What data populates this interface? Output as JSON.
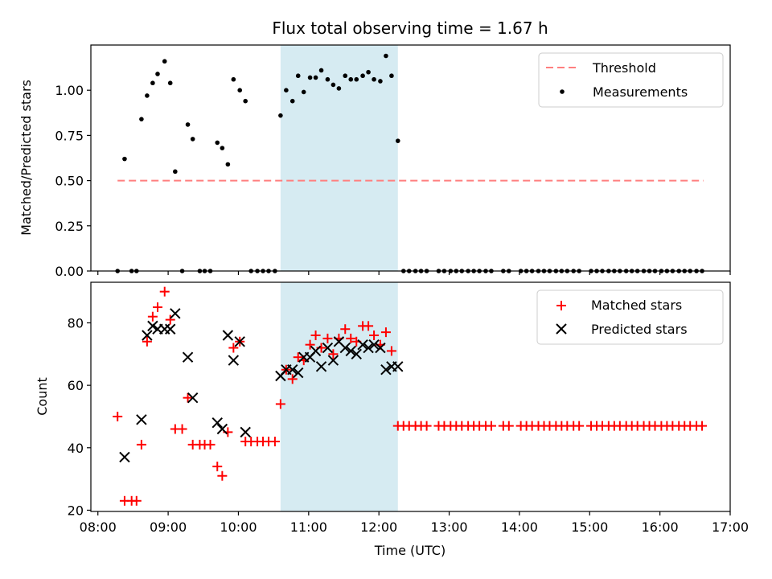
{
  "chart_data": {
    "title": "Flux total observing time = 1.67 h",
    "xlabel": "Time (UTC)",
    "x_ticks": [
      "08:00",
      "09:00",
      "10:00",
      "11:00",
      "12:00",
      "13:00",
      "14:00",
      "15:00",
      "16:00",
      "17:00"
    ],
    "xlim_hours": [
      7.9,
      17.0
    ],
    "shaded_interval_hours": [
      10.6,
      12.27
    ],
    "colors": {
      "shade": "#add8e6",
      "threshold": "#ff7f7f",
      "measurement": "#000000",
      "matched": "#ff0000",
      "predicted": "#000000"
    },
    "top": {
      "type": "scatter",
      "ylabel": "Matched/Predicted stars",
      "ylim": [
        0.0,
        1.25
      ],
      "y_ticks": [
        0.0,
        0.25,
        0.5,
        0.75,
        1.0
      ],
      "y_tick_labels": [
        "0.00",
        "0.25",
        "0.50",
        "0.75",
        "1.00"
      ],
      "legend": [
        "Threshold",
        "Measurements"
      ],
      "threshold": {
        "value": 0.5,
        "x_range": [
          8.28,
          16.62
        ]
      },
      "measurements": {
        "x": [
          8.28,
          8.38,
          8.48,
          8.55,
          8.62,
          8.7,
          8.78,
          8.85,
          8.95,
          9.03,
          9.1,
          9.2,
          9.28,
          9.35,
          9.45,
          9.52,
          9.6,
          9.7,
          9.77,
          9.85,
          9.93,
          10.02,
          10.1,
          10.18,
          10.27,
          10.35,
          10.43,
          10.52,
          10.6,
          10.68,
          10.77,
          10.85,
          10.93,
          11.02,
          11.1,
          11.18,
          11.27,
          11.35,
          11.43,
          11.52,
          11.6,
          11.68,
          11.77,
          11.85,
          11.93,
          12.02,
          12.1,
          12.18,
          12.27,
          12.35,
          12.43,
          12.52,
          12.6,
          12.68,
          12.85,
          12.93,
          13.02,
          13.1,
          13.18,
          13.27,
          13.35,
          13.43,
          13.52,
          13.6,
          13.77,
          13.85,
          14.02,
          14.1,
          14.18,
          14.27,
          14.35,
          14.43,
          14.52,
          14.6,
          14.68,
          14.77,
          14.85,
          15.02,
          15.1,
          15.18,
          15.27,
          15.35,
          15.43,
          15.52,
          15.6,
          15.68,
          15.77,
          15.85,
          15.93,
          16.02,
          16.1,
          16.18,
          16.27,
          16.35,
          16.43,
          16.52,
          16.6
        ],
        "y": [
          0.0,
          0.62,
          0.0,
          0.0,
          0.84,
          0.97,
          1.04,
          1.09,
          1.16,
          1.04,
          0.55,
          0.0,
          0.81,
          0.73,
          0.0,
          0.0,
          0.0,
          0.71,
          0.68,
          0.59,
          1.06,
          1.0,
          0.94,
          0.0,
          0.0,
          0.0,
          0.0,
          0.0,
          0.86,
          1.0,
          0.94,
          1.08,
          0.99,
          1.07,
          1.07,
          1.11,
          1.06,
          1.03,
          1.01,
          1.08,
          1.06,
          1.06,
          1.08,
          1.1,
          1.06,
          1.05,
          1.19,
          1.08,
          0.72,
          0.0,
          0.0,
          0.0,
          0.0,
          0.0,
          0.0,
          0.0,
          0.0,
          0.0,
          0.0,
          0.0,
          0.0,
          0.0,
          0.0,
          0.0,
          0.0,
          0.0,
          0.0,
          0.0,
          0.0,
          0.0,
          0.0,
          0.0,
          0.0,
          0.0,
          0.0,
          0.0,
          0.0,
          0.0,
          0.0,
          0.0,
          0.0,
          0.0,
          0.0,
          0.0,
          0.0,
          0.0,
          0.0,
          0.0,
          0.0,
          0.0,
          0.0,
          0.0,
          0.0,
          0.0,
          0.0,
          0.0,
          0.0
        ]
      }
    },
    "bottom": {
      "type": "scatter",
      "ylabel": "Count",
      "ylim": [
        19.6,
        93
      ],
      "y_ticks": [
        20,
        40,
        60,
        80
      ],
      "y_tick_labels": [
        "20",
        "40",
        "60",
        "80"
      ],
      "legend": [
        "Matched stars",
        "Predicted stars"
      ],
      "matched": {
        "x": [
          8.28,
          8.38,
          8.48,
          8.55,
          8.62,
          8.7,
          8.78,
          8.85,
          8.95,
          9.03,
          9.1,
          9.2,
          9.28,
          9.35,
          9.45,
          9.52,
          9.6,
          9.7,
          9.77,
          9.85,
          9.93,
          10.02,
          10.1,
          10.18,
          10.27,
          10.35,
          10.43,
          10.52,
          10.6,
          10.68,
          10.77,
          10.85,
          10.93,
          11.02,
          11.1,
          11.18,
          11.27,
          11.35,
          11.43,
          11.52,
          11.6,
          11.68,
          11.77,
          11.85,
          11.93,
          12.02,
          12.1,
          12.18,
          12.27,
          12.35,
          12.43,
          12.52,
          12.6,
          12.68,
          12.85,
          12.93,
          13.02,
          13.1,
          13.18,
          13.27,
          13.35,
          13.43,
          13.52,
          13.6,
          13.77,
          13.85,
          14.02,
          14.1,
          14.18,
          14.27,
          14.35,
          14.43,
          14.52,
          14.6,
          14.68,
          14.77,
          14.85,
          15.02,
          15.1,
          15.18,
          15.27,
          15.35,
          15.43,
          15.52,
          15.6,
          15.68,
          15.77,
          15.85,
          15.93,
          16.02,
          16.1,
          16.18,
          16.27,
          16.35,
          16.43,
          16.52,
          16.6
        ],
        "y": [
          50,
          23,
          23,
          23,
          41,
          74,
          82,
          85,
          90,
          81,
          46,
          46,
          56,
          41,
          41,
          41,
          41,
          34,
          31,
          45,
          72,
          74,
          42,
          42,
          42,
          42,
          42,
          42,
          54,
          65,
          62,
          69,
          68,
          73,
          76,
          72,
          75,
          70,
          75,
          78,
          75,
          74,
          79,
          79,
          76,
          73,
          77,
          71,
          47,
          47,
          47,
          47,
          47,
          47,
          47,
          47,
          47,
          47,
          47,
          47,
          47,
          47,
          47,
          47,
          47,
          47,
          47,
          47,
          47,
          47,
          47,
          47,
          47,
          47,
          47,
          47,
          47,
          47,
          47,
          47,
          47,
          47,
          47,
          47,
          47,
          47,
          47,
          47,
          47,
          47,
          47,
          47,
          47,
          47,
          47,
          47,
          47
        ]
      },
      "predicted": {
        "x": [
          8.38,
          8.62,
          8.7,
          8.78,
          8.85,
          8.95,
          9.03,
          9.1,
          9.28,
          9.35,
          9.7,
          9.77,
          9.85,
          9.93,
          10.02,
          10.1,
          10.6,
          10.68,
          10.77,
          10.85,
          10.93,
          11.02,
          11.1,
          11.18,
          11.27,
          11.35,
          11.43,
          11.52,
          11.6,
          11.68,
          11.77,
          11.85,
          11.93,
          12.02,
          12.1,
          12.18,
          12.27
        ],
        "y": [
          37,
          49,
          76,
          79,
          78,
          78,
          78,
          83,
          69,
          56,
          48,
          46,
          76,
          68,
          74,
          45,
          63,
          65,
          65,
          64,
          69,
          69,
          71,
          66,
          72,
          68,
          74,
          72,
          71,
          70,
          73,
          72,
          73,
          72,
          65,
          66,
          66
        ]
      }
    }
  }
}
